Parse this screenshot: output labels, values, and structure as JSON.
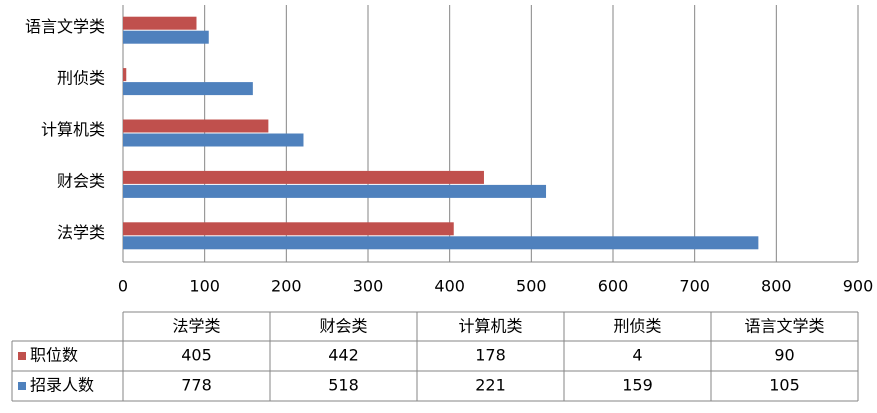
{
  "chart_data": {
    "type": "hbar",
    "categories": [
      "法学类",
      "财会类",
      "计算机类",
      "刑侦类",
      "语言文学类"
    ],
    "series": [
      {
        "name": "职位数",
        "color": "#c0504d",
        "values": [
          405,
          442,
          178,
          4,
          90
        ]
      },
      {
        "name": "招录人数",
        "color": "#4f81bd",
        "values": [
          778,
          518,
          221,
          159,
          105
        ]
      }
    ],
    "xlim": [
      0,
      900
    ],
    "xticks": [
      0,
      100,
      200,
      300,
      400,
      500,
      600,
      700,
      800,
      900
    ],
    "grid": true
  }
}
